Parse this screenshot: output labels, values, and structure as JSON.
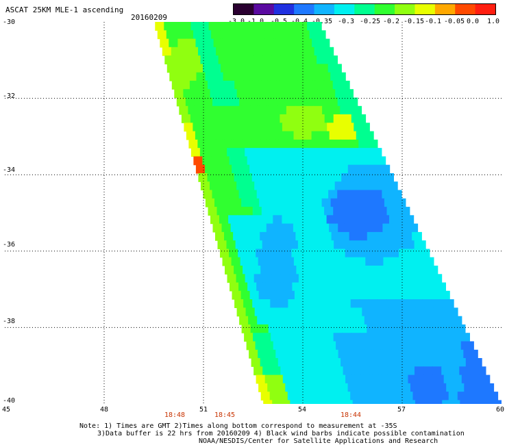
{
  "header": {
    "title": "ASCAT 25KM MLE-1 ascending",
    "date": "20160209"
  },
  "colorbar": {
    "labels": [
      "-3.0",
      "-1.0",
      "-0.5",
      "-0.4",
      "-0.35",
      "-0.3",
      "-0.25",
      "-0.2",
      "-0.15",
      "-0.1",
      "-0.05",
      "0.0",
      "1.0"
    ],
    "colors": [
      "#2a0030",
      "#5a0aa0",
      "#2030e0",
      "#1e78ff",
      "#10b4ff",
      "#00f0f0",
      "#00ff90",
      "#30ff30",
      "#90ff10",
      "#e8ff00",
      "#ffa800",
      "#ff4a00",
      "#ff1e10"
    ]
  },
  "axes": {
    "y_labels": [
      "-30",
      "-32",
      "-34",
      "-36",
      "-38",
      "-40"
    ],
    "x_labels": [
      "45",
      "48",
      "51",
      "54",
      "57",
      "60"
    ]
  },
  "times": [
    "18:48",
    "18:45",
    "18:44"
  ],
  "notes": [
    "Note: 1) Times are GMT 2)Times along bottom correspond to measurement at -35S",
    "3)Data buffer is 22 hrs from 20160209 4) Black wind barbs indicate possible contamination",
    "NOAA/NESDIS/Center for Satellite Applications and Research"
  ],
  "map": {
    "lon_range": [
      45,
      60
    ],
    "lat_range": [
      -40,
      -30
    ],
    "swath": {
      "west_edge": [
        [
          -30,
          49.5
        ],
        [
          -40,
          52.8
        ]
      ],
      "east_edge": [
        [
          -30,
          54.5
        ],
        [
          -40,
          60.0
        ]
      ]
    },
    "palette": {
      "deep_blue": "#1e78ff",
      "blue": "#10b4ff",
      "cyan": "#00f0f0",
      "aqua_green": "#00ff90",
      "green": "#30ff30",
      "lime": "#90ff10",
      "yellow": "#e8ff00",
      "orange": "#ffa800",
      "red_orange": "#ff4a00"
    }
  }
}
